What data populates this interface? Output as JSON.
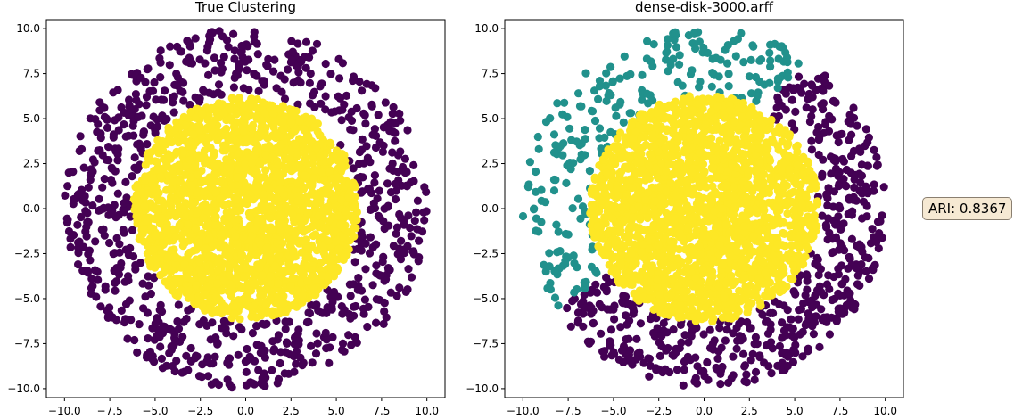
{
  "chart_data": [
    {
      "type": "scatter",
      "title": "True Clustering",
      "xlabel": "",
      "ylabel": "",
      "xlim": [
        -11,
        11
      ],
      "ylim": [
        -10.5,
        10.5
      ],
      "xticks": [
        -10.0,
        -7.5,
        -5.0,
        -2.5,
        0.0,
        2.5,
        5.0,
        7.5,
        10.0
      ],
      "yticks": [
        -10.0,
        -7.5,
        -5.0,
        -2.5,
        0.0,
        2.5,
        5.0,
        7.5,
        10.0
      ],
      "xtick_labels": [
        "−10.0",
        "−7.5",
        "−5.0",
        "−2.5",
        "0.0",
        "2.5",
        "5.0",
        "7.5",
        "10.0"
      ],
      "ytick_labels": [
        "−10.0",
        "−7.5",
        "−5.0",
        "−2.5",
        "0.0",
        "2.5",
        "5.0",
        "7.5",
        "10.0"
      ],
      "grid": false,
      "series": [
        {
          "cluster": 0,
          "color": "#440154",
          "shape": "ring",
          "center": [
            0,
            0
          ],
          "radius_range": [
            6.3,
            10.0
          ],
          "point_count": 800,
          "seed": 11
        },
        {
          "cluster": 1,
          "color": "#fde725",
          "shape": "disk",
          "center": [
            0,
            0
          ],
          "radius_range": [
            0,
            6.2
          ],
          "point_count": 2200,
          "seed": 12
        }
      ]
    },
    {
      "type": "scatter",
      "title": "dense-disk-3000.arff",
      "xlabel": "",
      "ylabel": "",
      "xlim": [
        -11,
        11
      ],
      "ylim": [
        -10.5,
        10.5
      ],
      "xticks": [
        -10.0,
        -7.5,
        -5.0,
        -2.5,
        0.0,
        2.5,
        5.0,
        7.5,
        10.0
      ],
      "yticks": [
        -10.0,
        -7.5,
        -5.0,
        -2.5,
        0.0,
        2.5,
        5.0,
        7.5,
        10.0
      ],
      "xtick_labels": [
        "−10.0",
        "−7.5",
        "−5.0",
        "−2.5",
        "0.0",
        "2.5",
        "5.0",
        "7.5",
        "10.0"
      ],
      "ytick_labels": [
        "−10.0",
        "−7.5",
        "−5.0",
        "−2.5",
        "0.0",
        "2.5",
        "5.0",
        "7.5",
        "10.0"
      ],
      "grid": false,
      "series": [
        {
          "cluster": 0,
          "color": "#440154",
          "shape": "ring",
          "center": [
            0,
            0
          ],
          "radius_range": [
            6.3,
            10.0
          ],
          "angle_range_deg": [
            -145,
            57
          ],
          "point_count": 560,
          "seed": 21
        },
        {
          "cluster": 1,
          "color": "#21918c",
          "shape": "ring",
          "center": [
            0,
            0
          ],
          "radius_range": [
            6.3,
            10.0
          ],
          "angle_range_deg": [
            57,
            215
          ],
          "point_count": 240,
          "seed": 22
        },
        {
          "cluster": 2,
          "color": "#fde725",
          "shape": "disk",
          "center": [
            0,
            0
          ],
          "radius_range": [
            0,
            6.3
          ],
          "point_count": 2200,
          "seed": 23
        }
      ]
    }
  ],
  "ari_label": "ARI: 0.8367"
}
